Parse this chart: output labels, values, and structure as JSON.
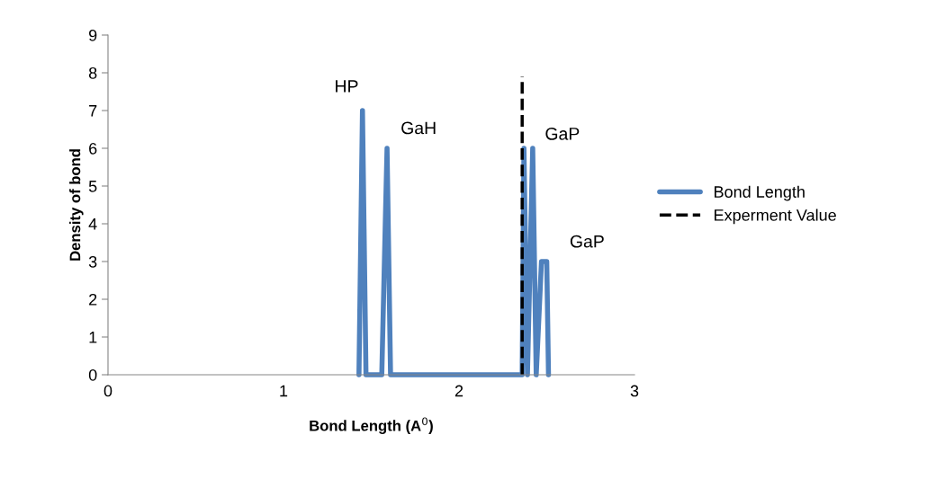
{
  "chart_data": {
    "type": "line",
    "xlabel": "Bond Length (A$^{0}$)",
    "ylabel": "Density of bond",
    "xlim": [
      0,
      3
    ],
    "xticks": [
      0,
      1,
      2,
      3
    ],
    "ylim": [
      0,
      9
    ],
    "yticks": [
      0,
      1,
      2,
      3,
      4,
      5,
      6,
      7,
      8,
      9
    ],
    "grid": false,
    "legend": "right",
    "marker": "none",
    "series": [
      {
        "name": "Bond Length",
        "color": "#4f81bd",
        "line_style": "solid",
        "x": [
          1.43,
          1.45,
          1.47,
          1.56,
          1.59,
          1.61,
          2.36,
          2.37,
          2.39,
          2.42,
          2.44,
          2.47,
          2.5,
          2.51
        ],
        "values": [
          0,
          7,
          0,
          0,
          6,
          0,
          0,
          6,
          0,
          6,
          0,
          3,
          3,
          0
        ]
      },
      {
        "name": "Experment Value",
        "color": "#000000",
        "line_style": "dashed",
        "x": [
          2.36,
          2.36
        ],
        "values": [
          0,
          7.9
        ]
      }
    ],
    "annotations": [
      "HP",
      "GaH",
      "GaP",
      "GaP"
    ]
  }
}
